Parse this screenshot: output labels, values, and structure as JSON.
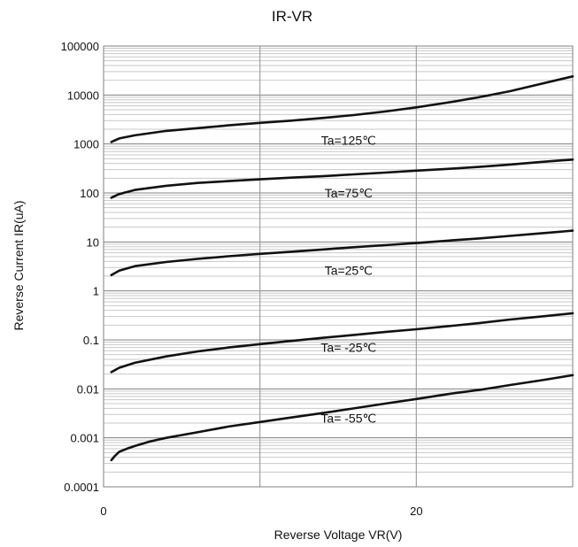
{
  "chart_data": {
    "type": "line",
    "title": "IR-VR",
    "xlabel": "Reverse Voltage   VR(V)",
    "ylabel": "Reverse Current   IR(uA)",
    "xlim": [
      0,
      30
    ],
    "ylim": [
      0.0001,
      100000
    ],
    "yscale": "log",
    "grid": true,
    "x_ticks": [
      {
        "value": 0,
        "label": "0"
      },
      {
        "value": 20,
        "label": "20"
      }
    ],
    "y_ticks": [
      {
        "value": 0.0001,
        "label": "0.0001"
      },
      {
        "value": 0.001,
        "label": "0.001"
      },
      {
        "value": 0.01,
        "label": "0.01"
      },
      {
        "value": 0.1,
        "label": "0.1"
      },
      {
        "value": 1,
        "label": "1"
      },
      {
        "value": 10,
        "label": "10"
      },
      {
        "value": 100,
        "label": "100"
      },
      {
        "value": 1000,
        "label": "1000"
      },
      {
        "value": 10000,
        "label": "10000"
      },
      {
        "value": 100000,
        "label": "100000"
      }
    ],
    "series": [
      {
        "x": [
          0.5,
          1,
          2,
          4,
          6,
          8,
          10,
          12,
          14,
          16,
          18,
          20,
          22,
          24,
          26,
          28,
          30
        ],
        "values": [
          1100,
          1300,
          1500,
          1850,
          2100,
          2400,
          2700,
          3000,
          3400,
          3900,
          4600,
          5600,
          7000,
          9000,
          12000,
          17000,
          24000
        ]
      },
      {
        "x": [
          0.5,
          1,
          2,
          4,
          6,
          8,
          10,
          12,
          14,
          16,
          18,
          20,
          22,
          24,
          26,
          28,
          30
        ],
        "values": [
          80,
          95,
          115,
          140,
          160,
          175,
          190,
          205,
          220,
          240,
          260,
          285,
          310,
          340,
          380,
          430,
          480
        ]
      },
      {
        "x": [
          0.5,
          1,
          2,
          4,
          6,
          8,
          10,
          12,
          14,
          16,
          18,
          20,
          22,
          24,
          26,
          28,
          30
        ],
        "values": [
          2.1,
          2.6,
          3.2,
          3.9,
          4.5,
          5.1,
          5.7,
          6.3,
          7,
          7.8,
          8.6,
          9.5,
          10.6,
          11.8,
          13.3,
          15,
          17
        ]
      },
      {
        "x": [
          0.5,
          1,
          2,
          4,
          6,
          8,
          10,
          12,
          14,
          16,
          18,
          20,
          22,
          24,
          26,
          28,
          30
        ],
        "values": [
          0.022,
          0.027,
          0.034,
          0.046,
          0.058,
          0.07,
          0.082,
          0.095,
          0.11,
          0.126,
          0.145,
          0.165,
          0.19,
          0.22,
          0.26,
          0.3,
          0.35
        ]
      },
      {
        "x": [
          0.5,
          0.7,
          1,
          1.5,
          2,
          3,
          4,
          6,
          8,
          10,
          12,
          14,
          16,
          18,
          20,
          22,
          24,
          26,
          28,
          30
        ],
        "values": [
          0.00035,
          0.00042,
          0.00052,
          0.0006,
          0.00068,
          0.00085,
          0.001,
          0.0013,
          0.0017,
          0.0021,
          0.0026,
          0.0032,
          0.004,
          0.005,
          0.0062,
          0.0078,
          0.0095,
          0.012,
          0.015,
          0.019
        ]
      }
    ],
    "annotations": [
      {
        "text": "Ta=125℃",
        "x": 15.5,
        "y": 1200
      },
      {
        "text": "Ta=75℃",
        "x": 15.5,
        "y": 100
      },
      {
        "text": "Ta=25℃",
        "x": 15.5,
        "y": 2.6
      },
      {
        "text": "Ta= -25℃",
        "x": 15.5,
        "y": 0.07
      },
      {
        "text": "Ta= -55℃",
        "x": 15.5,
        "y": 0.0025
      }
    ]
  }
}
